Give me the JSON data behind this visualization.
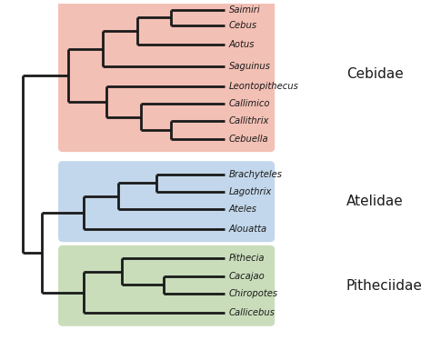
{
  "taxa": [
    "Saimiri",
    "Cebus",
    "Aotus",
    "Saguinus",
    "Leontopithecus",
    "Callimico",
    "Callithrix",
    "Cebuella",
    "Brachyteles",
    "Lagothrix",
    "Ateles",
    "Alouatta",
    "Pithecia",
    "Cacajao",
    "Chiropotes",
    "Callicebus"
  ],
  "families": {
    "Cebidae": {
      "taxa": [
        "Saimiri",
        "Cebus",
        "Aotus",
        "Saguinus",
        "Leontopithecus",
        "Callimico",
        "Callithrix",
        "Cebuella"
      ],
      "color": "#f2b5a8",
      "label": "Cebidae"
    },
    "Atelidae": {
      "taxa": [
        "Brachyteles",
        "Lagothrix",
        "Ateles",
        "Alouatta"
      ],
      "color": "#b8d0e8",
      "label": "Atelidae"
    },
    "Pitheciidae": {
      "taxa": [
        "Pithecia",
        "Cacajao",
        "Chiropotes",
        "Callicebus"
      ],
      "color": "#c0d8b0",
      "label": "Pitheciidae"
    }
  },
  "lw": 2.0,
  "tree_color": "#1a1a1a",
  "label_color": "#1a1a1a",
  "label_fontsize": 7.2,
  "family_fontsize": 11,
  "bg_color": "#ffffff"
}
